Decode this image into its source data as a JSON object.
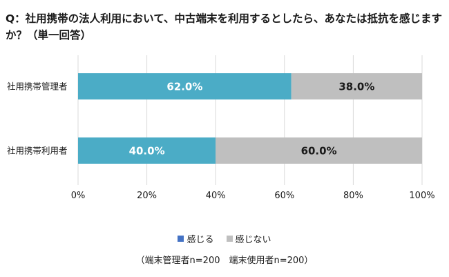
{
  "title": "Q：社用携帯の法人利用において、中古端末を利用するとしたら、あなたは抵抗を感じますか？（単一回答）",
  "note": "（端末管理者n=200　端末使用者n=200）",
  "chart_data": {
    "type": "bar",
    "orientation": "horizontal",
    "stacked": true,
    "categories": [
      "社用携帯管理者",
      "社用携帯利用者"
    ],
    "series": [
      {
        "name": "感じる",
        "values": [
          62.0,
          40.0
        ],
        "labels": [
          "62.0%",
          "40.0%"
        ],
        "color": "#4bacc6",
        "label_color": "#ffffff",
        "legend_color": "#4472c4"
      },
      {
        "name": "感じない",
        "values": [
          38.0,
          60.0
        ],
        "labels": [
          "38.0%",
          "60.0%"
        ],
        "color": "#bfbfbf",
        "label_color": "#1a1a1a",
        "legend_color": "#bfbfbf"
      }
    ],
    "xlim": [
      0,
      100
    ],
    "xticks": [
      0,
      20,
      40,
      60,
      80,
      100
    ],
    "xtick_labels": [
      "0%",
      "20%",
      "40%",
      "60%",
      "80%",
      "100%"
    ],
    "grid": true,
    "legend": "bottom"
  }
}
